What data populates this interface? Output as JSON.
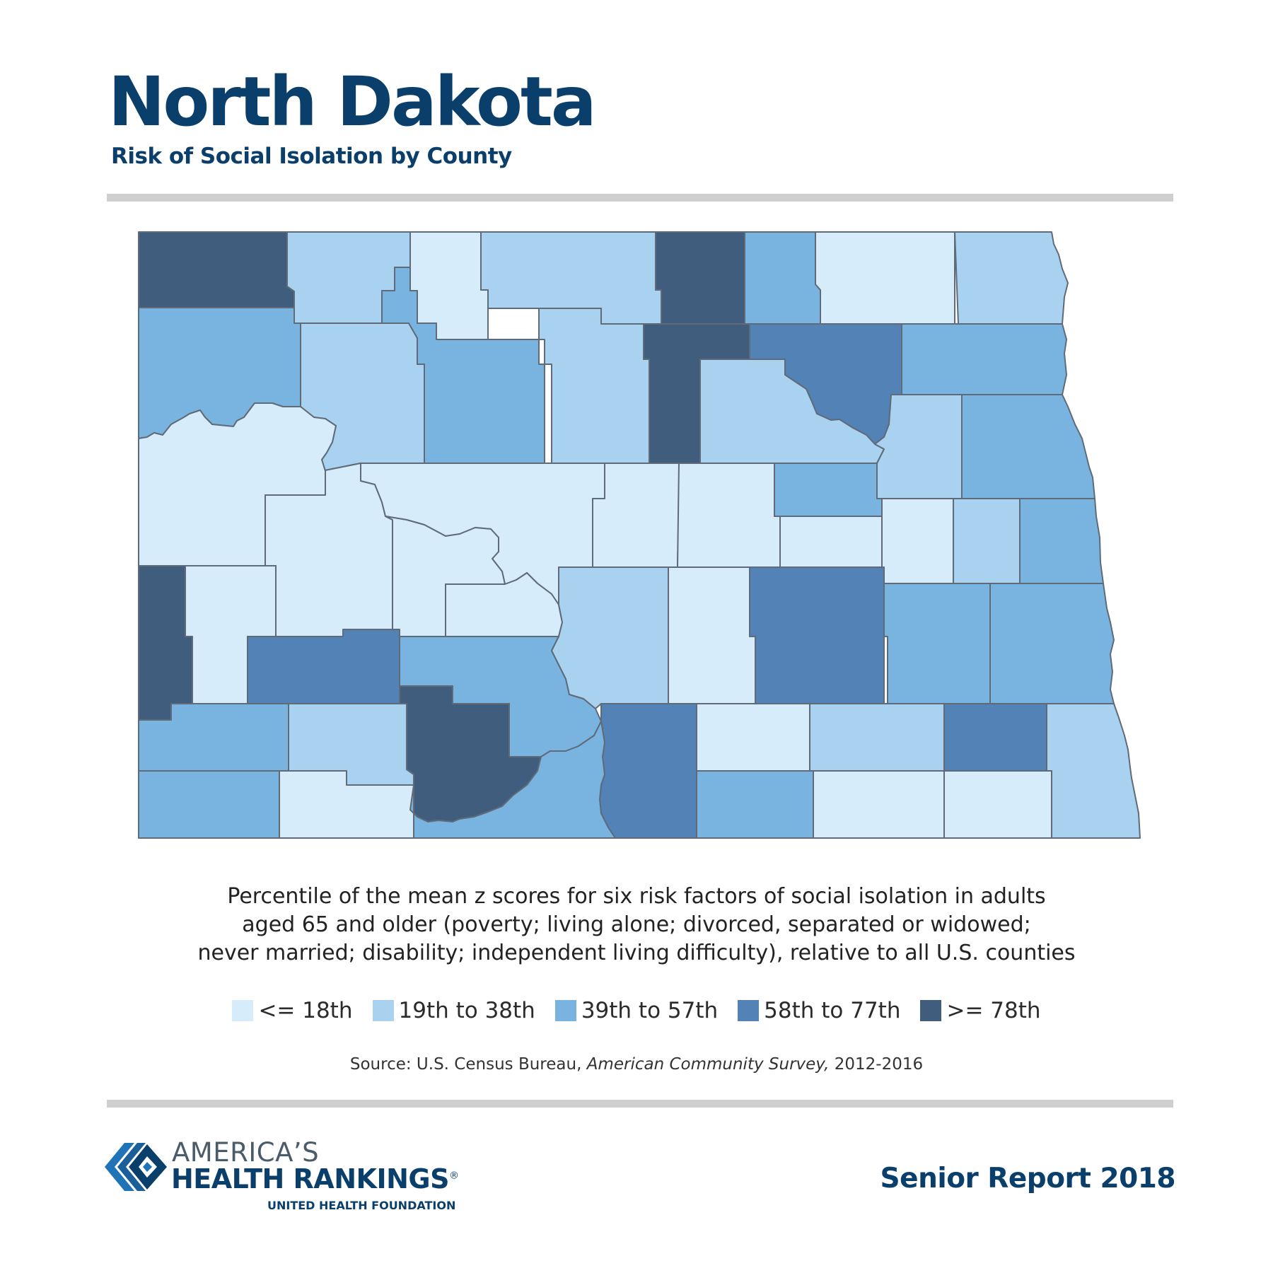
{
  "header": {
    "title": "North Dakota",
    "subtitle": "Risk of Social Isolation by County"
  },
  "map": {
    "region": "North Dakota",
    "classes": [
      {
        "label": "<= 18th",
        "color": "#d6ecfa"
      },
      {
        "label": "19th to 38th",
        "color": "#a8d2f0"
      },
      {
        "label": "39th to 57th",
        "color": "#79b4e0"
      },
      {
        "label": "58th to 77th",
        "color": "#5282b6"
      },
      {
        "label": ">= 78th",
        "color": "#415d7e"
      }
    ],
    "border_color": "#5f6b78"
  },
  "caption": {
    "line1": "Percentile of the mean z scores for six risk factors of social isolation in adults",
    "line2": "aged 65 and older (poverty; living alone; divorced, separated or widowed;",
    "line3": "never married; disability; independent living difficulty), relative to all U.S. counties"
  },
  "source": {
    "prefix": "Source: U.S. Census Bureau, ",
    "survey": "American Community Survey,",
    "suffix": " 2012-2016"
  },
  "footer": {
    "logo_line1": "AMERICA’S",
    "logo_line2": "HEALTH RANKINGS",
    "logo_registered": "®",
    "logo_line3": "UNITED HEALTH FOUNDATION",
    "report": "Senior Report 2018"
  }
}
